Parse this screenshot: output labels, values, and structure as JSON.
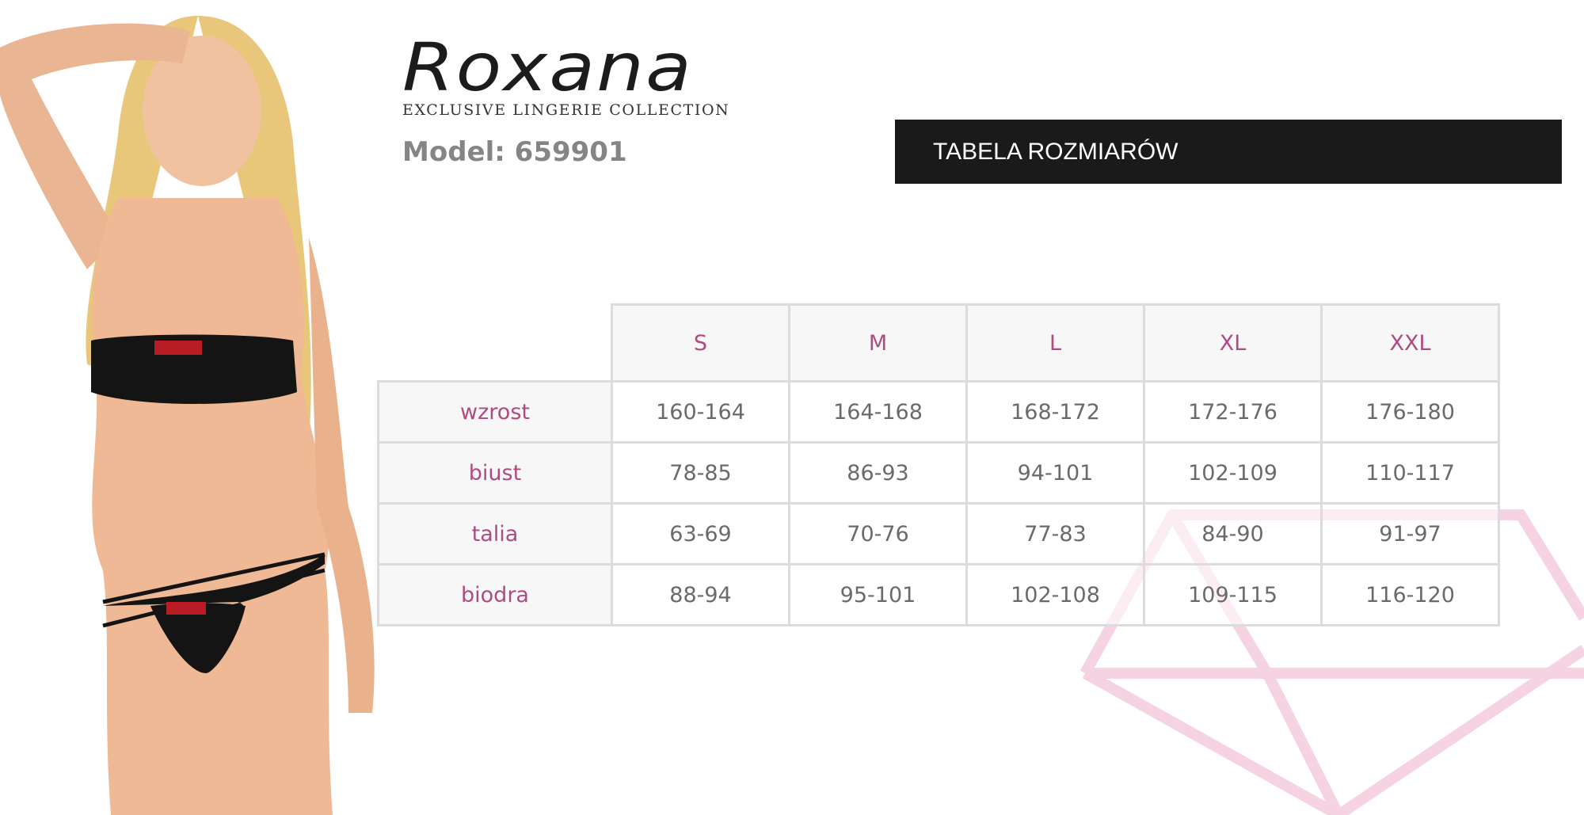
{
  "brand": {
    "name": "Roxana",
    "tagline": "EXCLUSIVE LINGERIE COLLECTION"
  },
  "model_label": "Model: 659901",
  "title_bar": "TABELA ROZMIARÓW",
  "size_table": {
    "sizes": [
      "S",
      "M",
      "L",
      "XL",
      "XXL"
    ],
    "rows": [
      {
        "label": "wzrost",
        "values": [
          "160-164",
          "164-168",
          "168-172",
          "172-176",
          "176-180"
        ]
      },
      {
        "label": "biust",
        "values": [
          "78-85",
          "86-93",
          "94-101",
          "102-109",
          "110-117"
        ]
      },
      {
        "label": "talia",
        "values": [
          "63-69",
          "70-76",
          "77-83",
          "84-90",
          "91-97"
        ]
      },
      {
        "label": "biodra",
        "values": [
          "88-94",
          "95-101",
          "102-108",
          "109-115",
          "116-120"
        ]
      }
    ]
  },
  "colors": {
    "accent": "#b04a82",
    "title_bar": "#1b1a1a",
    "watermark": "#f6d3e2"
  }
}
